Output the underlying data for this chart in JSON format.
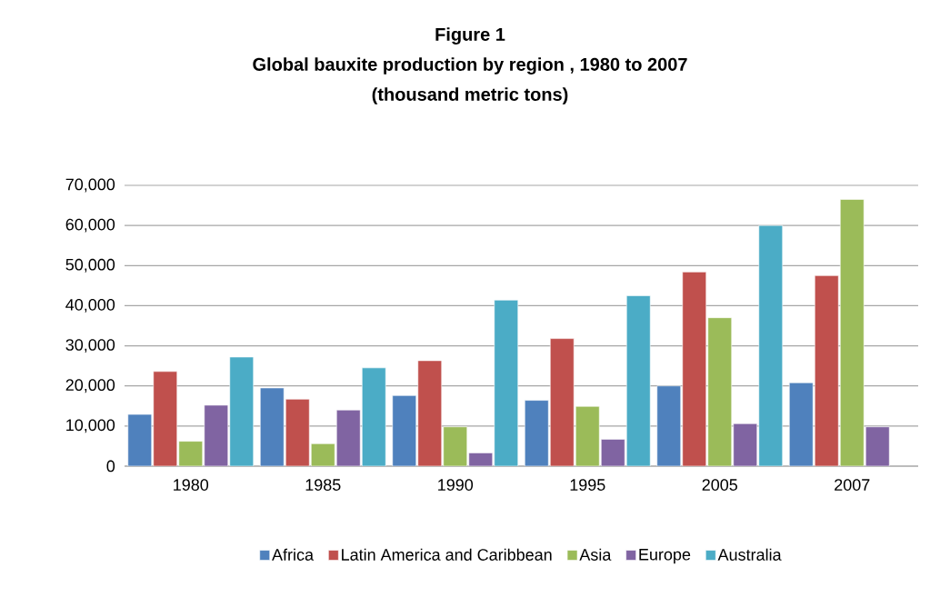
{
  "chart_data": {
    "type": "bar",
    "title": "Figure 1\nGlobal  bauxite production by region , 1980 to 2007\n(thousand metric tons)",
    "categories": [
      "1980",
      "1985",
      "1990",
      "1995",
      "2005",
      "2007"
    ],
    "series": [
      {
        "name": "Africa",
        "color": "#4f81bd",
        "values": [
          12900,
          19500,
          17600,
          16400,
          20000,
          20800
        ]
      },
      {
        "name": "Latin America and Caribbean",
        "color": "#c0504d",
        "values": [
          23600,
          16700,
          26300,
          31800,
          48400,
          47500
        ]
      },
      {
        "name": "Asia",
        "color": "#9bbb59",
        "values": [
          6200,
          5600,
          9800,
          14900,
          37000,
          66500
        ]
      },
      {
        "name": "Europe",
        "color": "#8064a2",
        "values": [
          15200,
          14000,
          3300,
          6700,
          10600,
          9800
        ]
      },
      {
        "name": "Australia",
        "color": "#4bacc6",
        "values": [
          27200,
          24500,
          41400,
          42500,
          60000,
          null
        ]
      }
    ],
    "ylim": [
      0,
      70000
    ],
    "yticks": [
      0,
      {
        "value": 10000,
        "label": "10,000"
      },
      {
        "value": 20000,
        "label": "20,000"
      },
      {
        "value": 30000,
        "label": "30,000"
      },
      {
        "value": 40000,
        "label": "40,000"
      },
      {
        "value": 50000,
        "label": "50,000"
      },
      {
        "value": 60000,
        "label": "60,000"
      },
      {
        "value": 70000,
        "label": "70,000"
      }
    ],
    "grid": "y",
    "legend": "bottom"
  }
}
